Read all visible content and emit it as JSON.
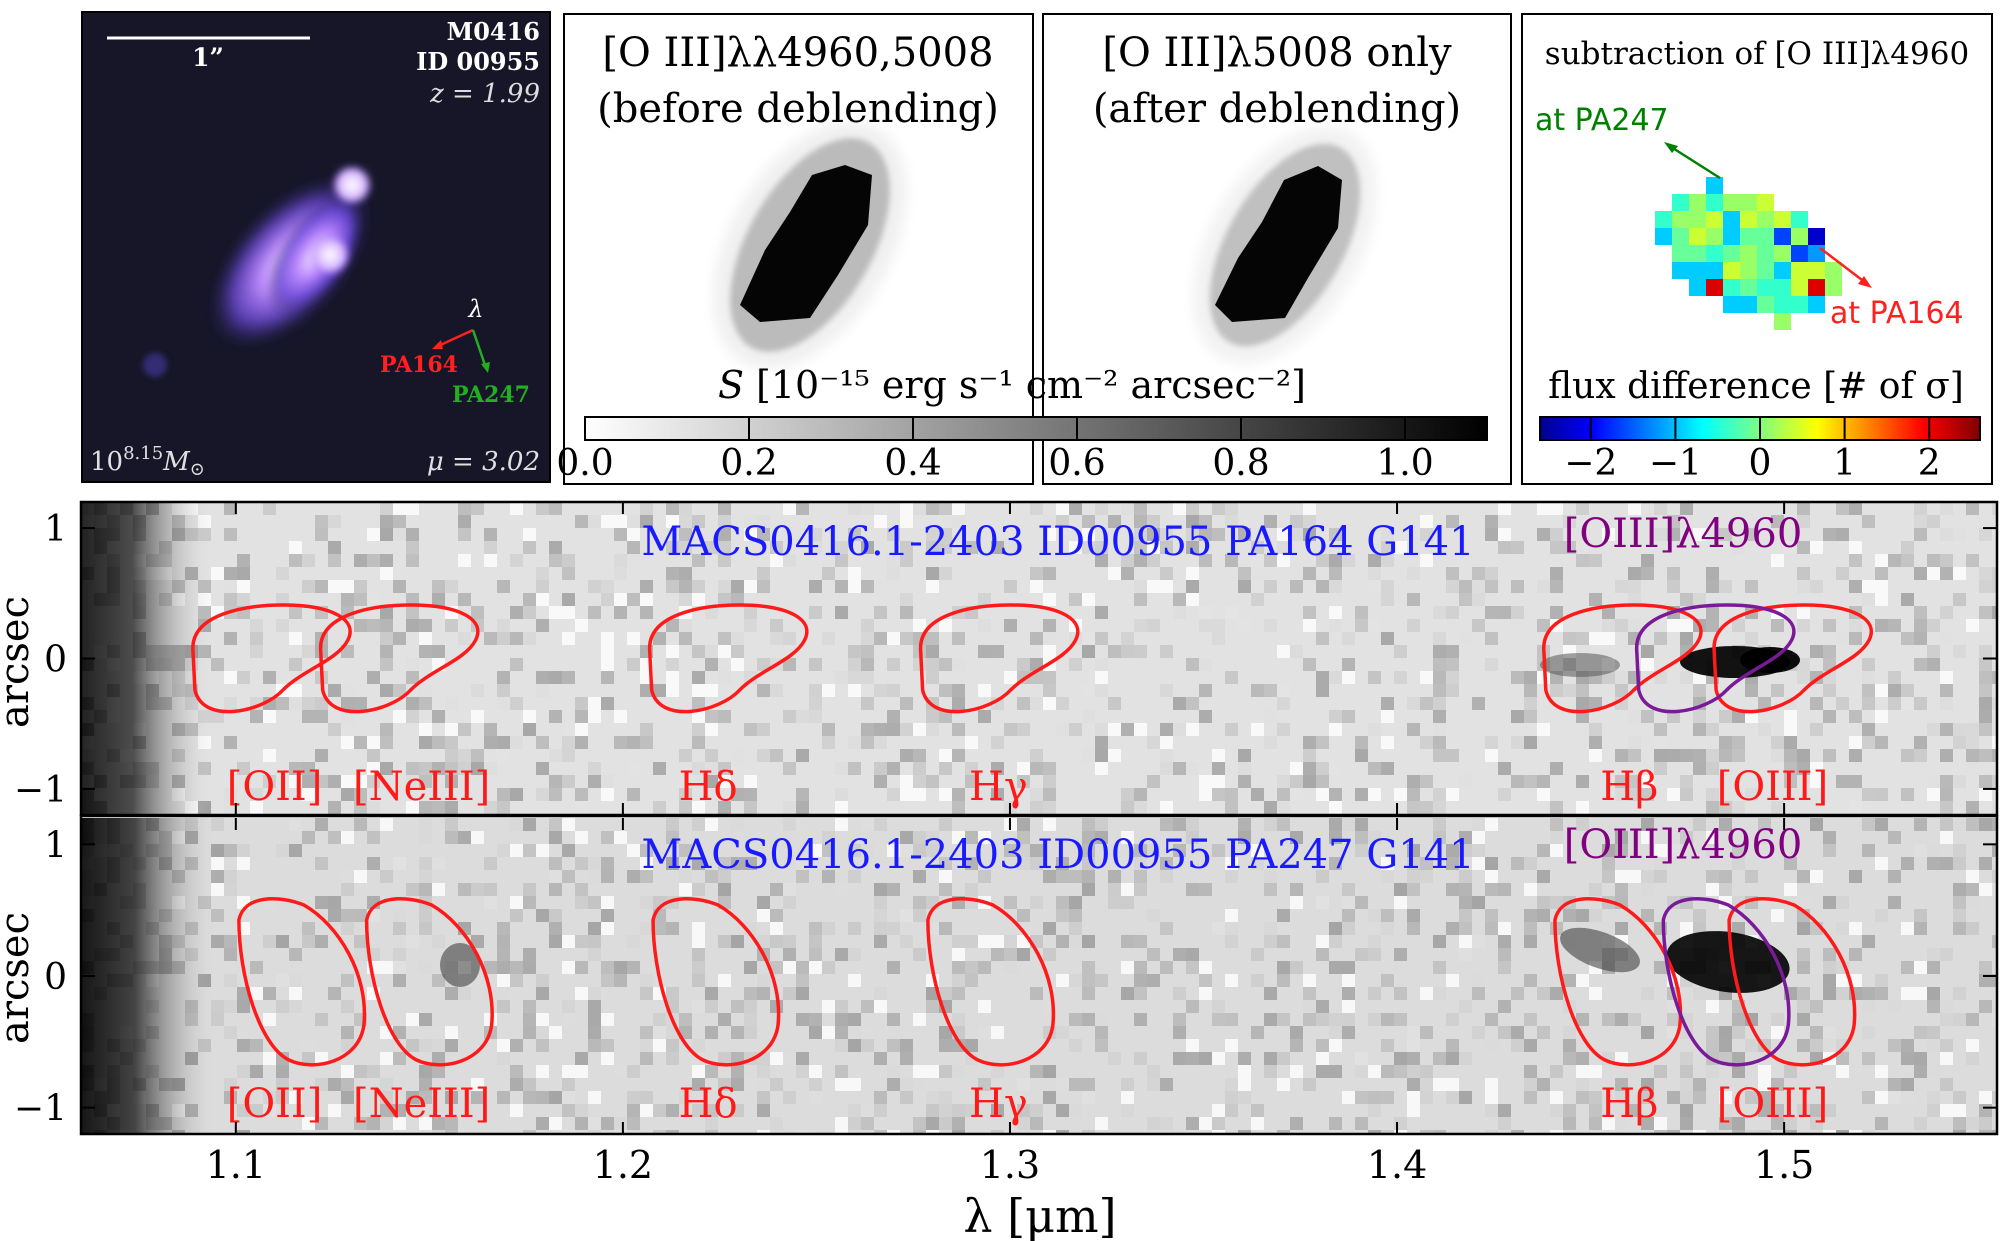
{
  "colors": {
    "blue_title": "#1a1aff",
    "purple": "#800080",
    "red": "#ff0000",
    "green": "#008000",
    "contour_red": "#ff1a1a",
    "contour_purple": "#7a1a99"
  },
  "panel_rgb": {
    "scale_label": "1”",
    "field": "M0416",
    "id": "ID 00955",
    "redshift": "z = 1.99",
    "dir_lambda": "λ",
    "pa164": "PA164",
    "pa247": "PA247",
    "mass": "10",
    "mass_exp": "8.15",
    "mass_unit": "M⊙",
    "magnification": "μ = 3.02"
  },
  "panel_before": {
    "line1": "[O III]λλ4960,5008",
    "line2": "(before deblending)"
  },
  "panel_after": {
    "line1": "[O III]λ5008 only",
    "line2": "(after deblending)"
  },
  "panel_sub": {
    "title": "subtraction of [O III]λ4960",
    "at_pa247": "at PA247",
    "at_pa164": "at PA164"
  },
  "colorbar_gray": {
    "label_prefix": "S",
    "label_units": "[10⁻¹⁵ erg s⁻¹ cm⁻² arcsec⁻²]",
    "ticks": [
      "0.0",
      "0.2",
      "0.4",
      "0.6",
      "0.8",
      "1.0"
    ],
    "range": [
      0.0,
      1.1
    ]
  },
  "colorbar_jet": {
    "label": "flux difference [# of σ]",
    "ticks": [
      "−2",
      "−1",
      "0",
      "1",
      "2"
    ],
    "range": [
      -2.6,
      2.6
    ]
  },
  "spectrum_top": {
    "title": "MACS0416.1-2403 ID00955 PA164 G141",
    "oiii4960_label": "[OIII]λ4960"
  },
  "spectrum_bottom": {
    "title": "MACS0416.1-2403 ID00955 PA247 G141",
    "oiii4960_label": "[OIII]λ4960"
  },
  "line_labels": [
    "[OII]",
    "[NeIII]",
    "Hδ",
    "Hγ",
    "Hβ",
    "[OIII]"
  ],
  "axes": {
    "ylabel": "arcsec",
    "yticks": [
      "1",
      "0",
      "−1"
    ],
    "xlabel": "λ [μm]",
    "xticks": [
      "1.1",
      "1.2",
      "1.3",
      "1.4",
      "1.5"
    ],
    "xlim": [
      1.06,
      1.555
    ],
    "ylim": [
      -1.2,
      1.2
    ]
  }
}
